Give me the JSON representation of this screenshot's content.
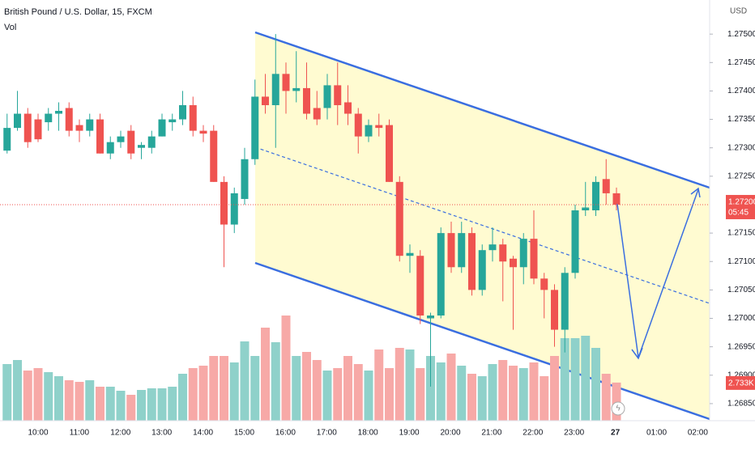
{
  "chart_data": {
    "type": "candlestick",
    "title": "British Pound / U.S. Dollar, 15, FXCM",
    "indicator": "Vol",
    "currency": "USD",
    "up_color": "#26a69a",
    "down_color": "#ef5350",
    "up_volume_color": "#8fd1ca",
    "down_volume_color": "#f7a9a7",
    "open": [
      1.27295,
      1.27335,
      1.2736,
      1.2735,
      1.27345,
      1.2736,
      1.2737,
      1.2734,
      1.2733,
      1.2735,
      1.2729,
      1.2731,
      1.2733,
      1.273,
      1.273,
      1.2732,
      1.27345,
      1.2735,
      1.27375,
      1.2733,
      1.2733,
      1.2724,
      1.27165,
      1.2721,
      1.2728,
      1.2739,
      1.27375,
      1.2743,
      1.274,
      1.27405,
      1.2737,
      1.2737,
      1.2741,
      1.2738,
      1.2736,
      1.2732,
      1.2734,
      1.2734,
      1.2724,
      1.2711,
      1.2711,
      1.27,
      1.27005,
      1.2715,
      1.2709,
      1.2715,
      1.2705,
      1.2712,
      1.2713,
      1.27105,
      1.2709,
      1.2714,
      1.2707,
      1.2705,
      1.2698,
      1.2708,
      1.2719,
      1.2719,
      1.27245,
      1.2722
    ],
    "high": [
      1.2736,
      1.274,
      1.2737,
      1.2736,
      1.2737,
      1.2738,
      1.2738,
      1.2735,
      1.2736,
      1.2736,
      1.2732,
      1.2733,
      1.2734,
      1.2731,
      1.2733,
      1.2736,
      1.2736,
      1.274,
      1.2739,
      1.2734,
      1.2734,
      1.2725,
      1.2723,
      1.273,
      1.2742,
      1.2743,
      1.275,
      1.2745,
      1.2747,
      1.2745,
      1.274,
      1.2743,
      1.2745,
      1.2741,
      1.2737,
      1.2735,
      1.2736,
      1.2735,
      1.2725,
      1.2713,
      1.2712,
      1.2701,
      1.2716,
      1.2717,
      1.2717,
      1.2716,
      1.2713,
      1.2716,
      1.2714,
      1.2711,
      1.2715,
      1.2719,
      1.2708,
      1.2706,
      1.2709,
      1.272,
      1.2724,
      1.2725,
      1.2728,
      1.2723
    ],
    "low": [
      1.2729,
      1.2733,
      1.273,
      1.2731,
      1.2733,
      1.2733,
      1.2732,
      1.2731,
      1.2732,
      1.2729,
      1.2728,
      1.273,
      1.2728,
      1.2728,
      1.2729,
      1.2732,
      1.2733,
      1.2734,
      1.2732,
      1.2731,
      1.2724,
      1.2709,
      1.2715,
      1.272,
      1.2727,
      1.2736,
      1.273,
      1.2736,
      1.2738,
      1.2735,
      1.2734,
      1.2735,
      1.2734,
      1.2734,
      1.2729,
      1.2731,
      1.2732,
      1.2724,
      1.271,
      1.2708,
      1.2699,
      1.2688,
      1.27,
      1.2708,
      1.2708,
      1.2704,
      1.2704,
      1.271,
      1.2703,
      1.2698,
      1.2706,
      1.2706,
      1.27,
      1.2695,
      1.2694,
      1.2707,
      1.2718,
      1.2718,
      1.272,
      1.2719
    ],
    "close": [
      1.27335,
      1.2736,
      1.2731,
      1.27315,
      1.2736,
      1.27365,
      1.2733,
      1.2733,
      1.2735,
      1.2729,
      1.2731,
      1.2732,
      1.2729,
      1.27305,
      1.2732,
      1.2735,
      1.2735,
      1.27375,
      1.2733,
      1.27325,
      1.2724,
      1.27165,
      1.2722,
      1.2728,
      1.2739,
      1.27375,
      1.2743,
      1.274,
      1.27405,
      1.2736,
      1.2735,
      1.2741,
      1.27375,
      1.2736,
      1.2732,
      1.2734,
      1.27335,
      1.2724,
      1.2711,
      1.27115,
      1.27005,
      1.27005,
      1.2715,
      1.2709,
      1.2715,
      1.2705,
      1.2712,
      1.2713,
      1.271,
      1.2709,
      1.2714,
      1.2707,
      1.2705,
      1.2698,
      1.2708,
      1.2719,
      1.27195,
      1.2724,
      1.2722,
      1.272
    ],
    "volume": [
      4060,
      4350,
      3596,
      3770,
      3480,
      3190,
      2900,
      2784,
      2900,
      2436,
      2436,
      2146,
      1856,
      2204,
      2320,
      2320,
      2436,
      3364,
      3770,
      3944,
      4640,
      4640,
      4176,
      5684,
      4640,
      6670,
      5626,
      7540,
      4640,
      4930,
      4350,
      3596,
      3770,
      4640,
      4060,
      3596,
      5104,
      3770,
      5220,
      5104,
      3770,
      4640,
      4176,
      4814,
      3944,
      3364,
      3190,
      4060,
      4350,
      3944,
      3770,
      4176,
      3190,
      4640,
      5916,
      5916,
      6090,
      5220,
      3364,
      2733
    ],
    "volume_label": {
      "value": 2733,
      "label": "2.733K"
    },
    "last_price": {
      "value": 1.272,
      "label": "1.27200"
    },
    "countdown": "05:45",
    "ylim": [
      1.2682,
      1.2756
    ],
    "yticks": [
      {
        "value": 1.275,
        "label": "1.27500"
      },
      {
        "value": 1.2745,
        "label": "1.27450"
      },
      {
        "value": 1.274,
        "label": "1.27400"
      },
      {
        "value": 1.2735,
        "label": "1.27350"
      },
      {
        "value": 1.273,
        "label": "1.27300"
      },
      {
        "value": 1.2725,
        "label": "1.27250"
      },
      {
        "value": 1.2715,
        "label": "1.27150"
      },
      {
        "value": 1.271,
        "label": "1.27100"
      },
      {
        "value": 1.2705,
        "label": "1.27050"
      },
      {
        "value": 1.27,
        "label": "1.27000"
      },
      {
        "value": 1.2695,
        "label": "1.26950"
      },
      {
        "value": 1.269,
        "label": "1.26900"
      },
      {
        "value": 1.2685,
        "label": "1.26850"
      }
    ],
    "xticks": [
      "10:00",
      "11:00",
      "12:00",
      "13:00",
      "14:00",
      "15:00",
      "16:00",
      "17:00",
      "18:00",
      "19:00",
      "20:00",
      "21:00",
      "22:00",
      "23:00",
      "27",
      "01:00",
      "02:00"
    ]
  }
}
